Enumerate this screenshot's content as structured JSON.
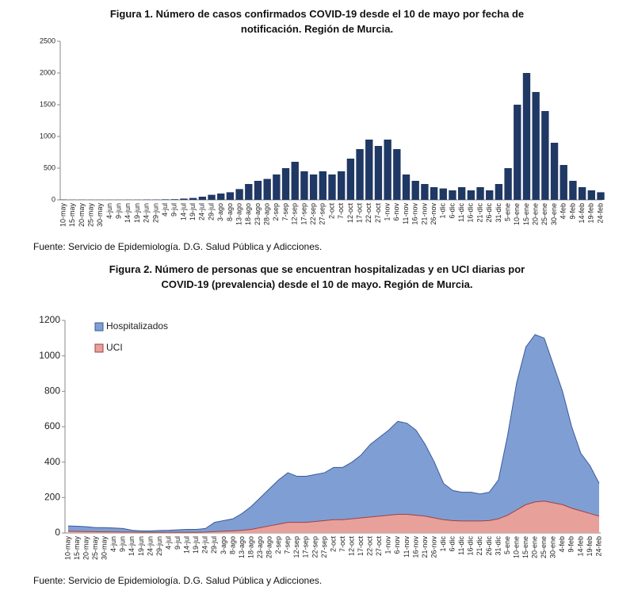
{
  "chart_data": [
    {
      "type": "bar",
      "title": "Figura 1. Número de casos confirmados COVID-19 desde el 10 de mayo por fecha de notificación. Región de Murcia.",
      "note": "Fuente: Servicio de Epidemiología. D.G. Salud Pública y Adicciones.",
      "categories": [
        "10-may",
        "15-may",
        "20-may",
        "25-may",
        "30-may",
        "4-jun",
        "9-jun",
        "14-jun",
        "19-jun",
        "24-jun",
        "29-jun",
        "4-jul",
        "9-jul",
        "14-jul",
        "19-jul",
        "24-jul",
        "29-jul",
        "3-ago",
        "8-ago",
        "13-ago",
        "18-ago",
        "23-ago",
        "28-ago",
        "2-sep",
        "7-sep",
        "12-sep",
        "17-sep",
        "22-sep",
        "27-sep",
        "2-oct",
        "7-oct",
        "12-oct",
        "17-oct",
        "22-oct",
        "27-oct",
        "1-nov",
        "6-nov",
        "11-nov",
        "16-nov",
        "21-nov",
        "26-nov",
        "1-dic",
        "6-dic",
        "11-dic",
        "16-dic",
        "21-dic",
        "26-dic",
        "31-dic",
        "5-ene",
        "10-ene",
        "15-ene",
        "20-ene",
        "25-ene",
        "30-ene",
        "4-feb",
        "9-feb",
        "14-feb",
        "19-feb",
        "24-feb"
      ],
      "values": [
        5,
        3,
        3,
        2,
        2,
        2,
        2,
        3,
        3,
        5,
        5,
        8,
        10,
        20,
        30,
        50,
        80,
        100,
        120,
        170,
        250,
        300,
        330,
        400,
        500,
        600,
        450,
        400,
        450,
        400,
        450,
        650,
        800,
        950,
        850,
        950,
        800,
        400,
        300,
        250,
        200,
        180,
        150,
        200,
        150,
        200,
        150,
        250,
        500,
        1500,
        2000,
        1700,
        1400,
        900,
        550,
        300,
        200,
        150,
        120
      ],
      "color": "#1f3864",
      "ylim": [
        0,
        2500
      ],
      "yticks": [
        0,
        500,
        1000,
        1500,
        2000,
        2500
      ]
    },
    {
      "type": "area",
      "title": "Figura 2. Número de personas que se encuentran hospitalizadas y en UCI diarias por COVID-19 (prevalencia) desde el 10 de mayo. Región de Murcia.",
      "note": "Fuente: Servicio de Epidemiología. D.G. Salud Pública y Adicciones.",
      "categories": [
        "10-may",
        "15-may",
        "20-may",
        "25-may",
        "30-may",
        "4-jun",
        "9-jun",
        "14-jun",
        "19-jun",
        "24-jun",
        "29-jun",
        "4-jul",
        "9-jul",
        "14-jul",
        "19-jul",
        "24-jul",
        "29-jul",
        "3-ago",
        "8-ago",
        "13-ago",
        "18-ago",
        "23-ago",
        "28-ago",
        "2-sep",
        "7-sep",
        "12-sep",
        "17-sep",
        "22-sep",
        "27-sep",
        "2-oct",
        "7-oct",
        "12-oct",
        "17-oct",
        "22-oct",
        "27-oct",
        "1-nov",
        "6-nov",
        "11-nov",
        "16-nov",
        "21-nov",
        "26-nov",
        "1-dic",
        "6-dic",
        "11-dic",
        "16-dic",
        "21-dic",
        "26-dic",
        "31-dic",
        "5-ene",
        "10-ene",
        "15-ene",
        "20-ene",
        "25-ene",
        "30-ene",
        "4-feb",
        "9-feb",
        "14-feb",
        "19-feb",
        "24-feb"
      ],
      "series": [
        {
          "name": "Hospitalizados",
          "color": "#7f9fd4",
          "values": [
            40,
            38,
            35,
            30,
            30,
            28,
            25,
            15,
            12,
            12,
            14,
            15,
            18,
            20,
            20,
            25,
            60,
            70,
            80,
            110,
            150,
            200,
            250,
            300,
            340,
            320,
            320,
            330,
            340,
            370,
            370,
            400,
            440,
            500,
            540,
            580,
            630,
            620,
            580,
            500,
            400,
            280,
            240,
            230,
            230,
            220,
            230,
            300,
            550,
            850,
            1050,
            1120,
            1100,
            950,
            800,
            600,
            450,
            380,
            280
          ]
        },
        {
          "name": "UCI",
          "color": "#e8a09a",
          "values": [
            10,
            9,
            8,
            7,
            6,
            6,
            5,
            5,
            4,
            4,
            4,
            4,
            4,
            4,
            4,
            5,
            8,
            10,
            12,
            15,
            20,
            30,
            40,
            50,
            60,
            60,
            60,
            65,
            70,
            75,
            75,
            80,
            85,
            90,
            95,
            100,
            105,
            105,
            100,
            95,
            85,
            75,
            70,
            68,
            68,
            68,
            70,
            80,
            100,
            130,
            160,
            175,
            180,
            170,
            160,
            140,
            125,
            110,
            95
          ]
        }
      ],
      "legend": "upper left",
      "ylim": [
        0,
        1200
      ],
      "yticks": [
        0,
        200,
        400,
        600,
        800,
        1000,
        1200
      ]
    }
  ]
}
